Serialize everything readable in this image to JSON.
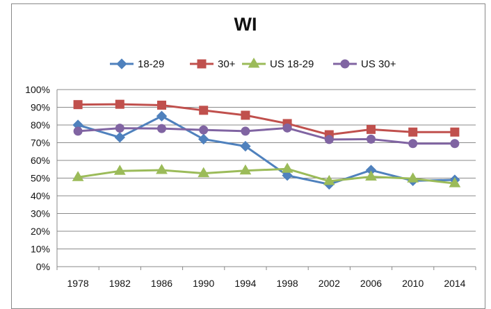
{
  "chart_data": {
    "type": "line",
    "title": "WI",
    "xlabel": "",
    "ylabel": "",
    "categories": [
      "1978",
      "1982",
      "1986",
      "1990",
      "1994",
      "1998",
      "2002",
      "2006",
      "2010",
      "2014"
    ],
    "ylim": [
      0,
      100
    ],
    "ytick_labels": [
      "0%",
      "10%",
      "20%",
      "30%",
      "40%",
      "50%",
      "60%",
      "70%",
      "80%",
      "90%",
      "100%"
    ],
    "grid": true,
    "legend_position": "top",
    "series": [
      {
        "name": "18-29",
        "color": "#4F81BD",
        "marker": "diamond",
        "values": [
          80,
          73,
          85,
          72,
          68,
          51.5,
          46.5,
          54.5,
          48.5,
          49
        ]
      },
      {
        "name": "30+",
        "color": "#C0504D",
        "marker": "square",
        "values": [
          91.5,
          91.7,
          91.2,
          88.3,
          85.5,
          80.8,
          74.5,
          77.5,
          76,
          76
        ]
      },
      {
        "name": "US 18-29",
        "color": "#9BBB59",
        "marker": "triangle",
        "values": [
          50.5,
          54,
          54.5,
          52.7,
          54.2,
          55.2,
          48.3,
          50.8,
          49.7,
          47
        ]
      },
      {
        "name": "US 30+",
        "color": "#8064A2",
        "marker": "circle",
        "values": [
          76.5,
          78.2,
          78,
          77.2,
          76.5,
          78.3,
          71.8,
          72,
          69.5,
          69.5
        ]
      }
    ]
  }
}
